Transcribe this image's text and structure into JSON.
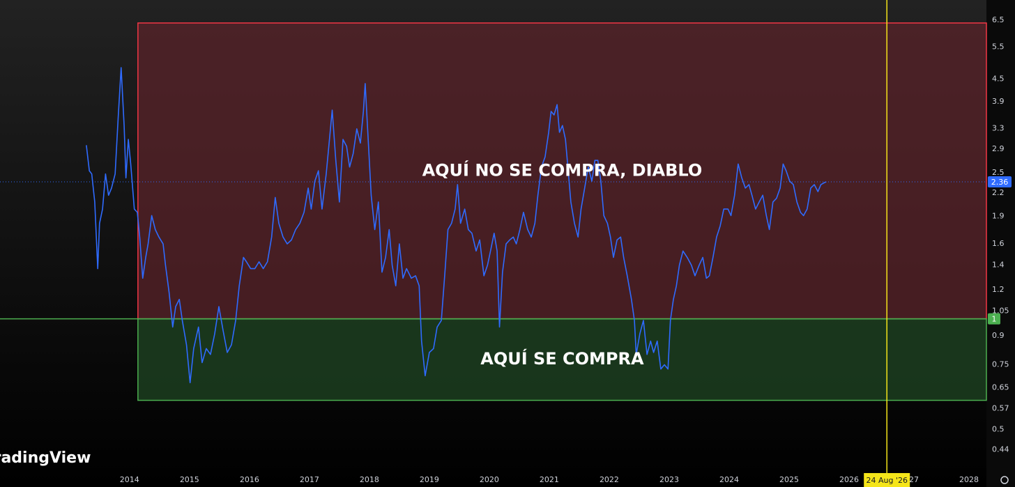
{
  "chart_data": {
    "type": "line",
    "log_scale": true,
    "grid": false,
    "xlim": [
      2011.84,
      2028.29
    ],
    "ylim": [
      0.387,
      7.38
    ],
    "xticks": [
      2014,
      2015,
      2016,
      2017,
      2018,
      2019,
      2020,
      2021,
      2022,
      2023,
      2024,
      2025,
      2026,
      2027,
      2028
    ],
    "yticks": [
      6.5,
      5.5,
      4.5,
      3.9,
      3.3,
      2.9,
      2.5,
      2.2,
      1.9,
      1.6,
      1.4,
      1.2,
      1.05,
      0.9,
      0.75,
      0.65,
      0.57,
      0.5,
      0.44
    ],
    "x": [
      2013.28,
      2013.33,
      2013.37,
      2013.42,
      2013.47,
      2013.5,
      2013.55,
      2013.6,
      2013.65,
      2013.7,
      2013.76,
      2013.81,
      2013.86,
      2013.91,
      2013.94,
      2013.98,
      2014.02,
      2014.08,
      2014.13,
      2014.17,
      2014.22,
      2014.27,
      2014.31,
      2014.37,
      2014.43,
      2014.49,
      2014.56,
      2014.6,
      2014.66,
      2014.72,
      2014.77,
      2014.83,
      2014.88,
      2014.95,
      2015.01,
      2015.07,
      2015.15,
      2015.21,
      2015.28,
      2015.35,
      2015.42,
      2015.49,
      2015.56,
      2015.63,
      2015.7,
      2015.77,
      2015.83,
      2015.9,
      2015.95,
      2016.02,
      2016.09,
      2016.16,
      2016.23,
      2016.3,
      2016.37,
      2016.43,
      2016.49,
      2016.56,
      2016.63,
      2016.7,
      2016.77,
      2016.84,
      2016.91,
      2016.98,
      2017.03,
      2017.09,
      2017.15,
      2017.21,
      2017.28,
      2017.34,
      2017.38,
      2017.44,
      2017.5,
      2017.56,
      2017.62,
      2017.67,
      2017.73,
      2017.79,
      2017.85,
      2017.9,
      2017.93,
      2017.98,
      2018.03,
      2018.09,
      2018.15,
      2018.21,
      2018.27,
      2018.33,
      2018.38,
      2018.44,
      2018.5,
      2018.56,
      2018.62,
      2018.7,
      2018.77,
      2018.83,
      2018.87,
      2018.93,
      2019.0,
      2019.07,
      2019.13,
      2019.2,
      2019.26,
      2019.31,
      2019.37,
      2019.43,
      2019.47,
      2019.52,
      2019.59,
      2019.65,
      2019.71,
      2019.78,
      2019.84,
      2019.91,
      2019.97,
      2020.02,
      2020.08,
      2020.13,
      2020.17,
      2020.22,
      2020.28,
      2020.34,
      2020.4,
      2020.45,
      2020.51,
      2020.57,
      2020.64,
      2020.7,
      2020.76,
      2020.81,
      2020.87,
      2020.93,
      2020.99,
      2021.03,
      2021.08,
      2021.13,
      2021.17,
      2021.22,
      2021.27,
      2021.31,
      2021.36,
      2021.42,
      2021.48,
      2021.53,
      2021.59,
      2021.65,
      2021.71,
      2021.76,
      2021.81,
      2021.86,
      2021.91,
      2021.97,
      2022.02,
      2022.07,
      2022.13,
      2022.19,
      2022.24,
      2022.3,
      2022.37,
      2022.42,
      2022.45,
      2022.51,
      2022.57,
      2022.63,
      2022.69,
      2022.74,
      2022.8,
      2022.86,
      2022.92,
      2022.98,
      2023.02,
      2023.07,
      2023.12,
      2023.17,
      2023.23,
      2023.3,
      2023.37,
      2023.43,
      2023.5,
      2023.56,
      2023.62,
      2023.67,
      2023.73,
      2023.79,
      2023.85,
      2023.91,
      2023.98,
      2024.03,
      2024.09,
      2024.15,
      2024.21,
      2024.27,
      2024.33,
      2024.38,
      2024.44,
      2024.5,
      2024.56,
      2024.62,
      2024.67,
      2024.73,
      2024.79,
      2024.85,
      2024.9,
      2024.95,
      2025.01,
      2025.07,
      2025.13,
      2025.19,
      2025.24,
      2025.3,
      2025.36,
      2025.42,
      2025.48,
      2025.53,
      2025.59,
      2025.62
    ],
    "series": [
      {
        "color": "#2f6bff",
        "values": [
          2.97,
          2.53,
          2.48,
          2.08,
          1.37,
          1.82,
          1.99,
          2.48,
          2.17,
          2.27,
          2.48,
          3.51,
          4.83,
          3.36,
          2.42,
          3.08,
          2.64,
          1.99,
          1.95,
          1.67,
          1.29,
          1.47,
          1.6,
          1.91,
          1.75,
          1.67,
          1.6,
          1.4,
          1.18,
          0.95,
          1.08,
          1.13,
          0.99,
          0.85,
          0.67,
          0.83,
          0.95,
          0.76,
          0.83,
          0.8,
          0.91,
          1.08,
          0.93,
          0.81,
          0.85,
          0.99,
          1.23,
          1.47,
          1.43,
          1.37,
          1.37,
          1.43,
          1.37,
          1.43,
          1.67,
          2.14,
          1.82,
          1.67,
          1.6,
          1.64,
          1.75,
          1.82,
          1.95,
          2.27,
          1.99,
          2.37,
          2.53,
          1.99,
          2.48,
          3.15,
          3.7,
          2.7,
          2.08,
          3.08,
          2.95,
          2.59,
          2.82,
          3.29,
          3.01,
          3.67,
          4.37,
          3.08,
          2.17,
          1.75,
          2.08,
          1.34,
          1.47,
          1.75,
          1.4,
          1.23,
          1.6,
          1.29,
          1.37,
          1.29,
          1.31,
          1.23,
          0.87,
          0.7,
          0.81,
          0.83,
          0.95,
          0.99,
          1.34,
          1.75,
          1.82,
          1.99,
          2.32,
          1.82,
          1.99,
          1.75,
          1.71,
          1.53,
          1.64,
          1.31,
          1.4,
          1.53,
          1.71,
          1.53,
          0.95,
          1.34,
          1.6,
          1.64,
          1.67,
          1.6,
          1.75,
          1.95,
          1.75,
          1.67,
          1.82,
          2.17,
          2.59,
          2.76,
          3.22,
          3.67,
          3.59,
          3.83,
          3.22,
          3.36,
          3.08,
          2.59,
          2.08,
          1.82,
          1.67,
          1.99,
          2.27,
          2.59,
          2.37,
          2.7,
          2.7,
          2.37,
          1.91,
          1.82,
          1.67,
          1.47,
          1.64,
          1.67,
          1.47,
          1.31,
          1.13,
          0.99,
          0.8,
          0.91,
          0.99,
          0.8,
          0.87,
          0.81,
          0.87,
          0.73,
          0.75,
          0.73,
          0.99,
          1.13,
          1.23,
          1.4,
          1.53,
          1.47,
          1.4,
          1.31,
          1.4,
          1.47,
          1.29,
          1.31,
          1.47,
          1.67,
          1.79,
          1.99,
          1.99,
          1.91,
          2.17,
          2.64,
          2.42,
          2.27,
          2.32,
          2.17,
          1.99,
          2.08,
          2.17,
          1.91,
          1.75,
          2.08,
          2.13,
          2.27,
          2.64,
          2.53,
          2.37,
          2.32,
          2.08,
          1.95,
          1.91,
          1.99,
          2.27,
          2.32,
          2.22,
          2.32,
          2.35,
          2.36
        ]
      }
    ],
    "zones": [
      {
        "label": "AQUÍ NO SE COMPRA, DIABLO",
        "ylim": [
          1,
          6.39
        ],
        "x0": 2014.14,
        "fill": "#5a2329",
        "stroke": "#f23645"
      },
      {
        "label": "AQUÍ SE COMPRA",
        "ylim": [
          0.6,
          1
        ],
        "x0": 2014.14,
        "fill": "#1f4623",
        "stroke": "#4caf50"
      }
    ],
    "hline": {
      "value": 1,
      "color": "#4caf50"
    },
    "crosshair": {
      "x": 2026.63,
      "label": "24 Aug '26",
      "color": "#f5e51a"
    },
    "watermark": "TradingView"
  }
}
